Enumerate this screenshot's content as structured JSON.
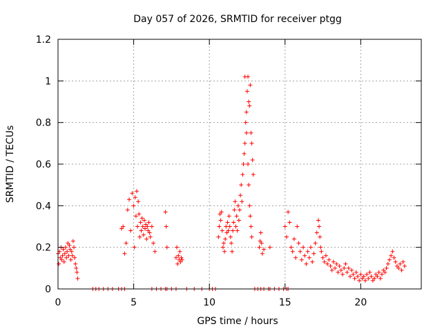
{
  "chart_data": {
    "type": "scatter",
    "title": "Day 057 of 2026, SRMTID for receiver ptgg",
    "xlabel": "GPS time / hours",
    "ylabel": "SRMTID / TECUs",
    "xlim": [
      0,
      24
    ],
    "ylim": [
      0,
      1.2
    ],
    "xticks": [
      0,
      5,
      10,
      15,
      20
    ],
    "xtick_labels": [
      "0",
      "5",
      "10",
      "15",
      "20"
    ],
    "yticks": [
      0,
      0.2,
      0.4,
      0.6,
      0.8,
      1,
      1.2
    ],
    "ytick_labels": [
      "0",
      "0.2",
      "0.4",
      "0.6",
      "0.8",
      "1",
      "1.2"
    ],
    "grid": true,
    "marker": "plus",
    "color": "#ff0000",
    "series": [
      {
        "name": "SRMTID",
        "x": [
          0.0,
          0.05,
          0.1,
          0.15,
          0.2,
          0.25,
          0.3,
          0.35,
          0.4,
          0.45,
          0.5,
          0.55,
          0.6,
          0.65,
          0.7,
          0.75,
          0.8,
          0.85,
          0.9,
          0.95,
          1.0,
          1.05,
          1.1,
          1.15,
          1.2,
          1.25,
          1.3,
          2.3,
          2.5,
          2.7,
          3.0,
          3.3,
          3.6,
          4.0,
          4.2,
          4.4,
          4.2,
          4.3,
          4.4,
          4.5,
          4.6,
          4.7,
          4.8,
          4.9,
          5.0,
          5.05,
          5.1,
          5.15,
          5.2,
          5.25,
          5.3,
          5.35,
          5.4,
          5.45,
          5.5,
          5.55,
          5.6,
          5.65,
          5.7,
          5.75,
          5.8,
          5.85,
          5.9,
          5.95,
          6.0,
          6.05,
          6.1,
          6.2,
          6.3,
          6.4,
          6.2,
          6.5,
          6.8,
          7.1,
          7.2,
          7.5,
          7.8,
          7.1,
          7.15,
          7.2,
          7.8,
          7.85,
          7.9,
          7.95,
          8.0,
          8.05,
          8.1,
          8.15,
          8.2,
          8.5,
          9.0,
          9.5,
          10.0,
          10.2,
          10.4,
          10.6,
          10.65,
          10.7,
          10.75,
          10.8,
          10.85,
          10.9,
          10.95,
          11.0,
          11.05,
          11.1,
          11.15,
          11.2,
          11.25,
          11.3,
          11.35,
          11.4,
          11.45,
          11.5,
          11.55,
          11.6,
          11.65,
          11.7,
          11.75,
          11.8,
          11.85,
          11.9,
          11.95,
          12.0,
          12.05,
          12.1,
          12.15,
          12.2,
          12.25,
          12.3,
          12.35,
          12.4,
          12.45,
          12.5,
          12.55,
          12.6,
          12.65,
          12.7,
          12.75,
          12.8,
          12.85,
          12.9,
          12.35,
          12.45,
          12.55,
          12.6,
          12.65,
          12.7,
          12.75,
          12.8,
          13.0,
          13.2,
          13.4,
          13.6,
          14.0,
          14.3,
          14.6,
          14.9,
          15.1,
          15.2,
          13.3,
          13.35,
          13.4,
          13.45,
          13.5,
          13.6,
          13.9,
          14.0,
          15.0,
          15.1,
          15.2,
          15.3,
          15.4,
          15.5,
          15.6,
          15.7,
          15.8,
          15.9,
          16.0,
          16.1,
          16.2,
          16.3,
          16.4,
          16.5,
          16.6,
          16.7,
          16.8,
          16.9,
          17.0,
          17.1,
          17.2,
          17.25,
          17.3,
          17.35,
          17.4,
          17.5,
          17.6,
          17.7,
          17.8,
          17.9,
          18.0,
          18.1,
          18.2,
          18.3,
          18.4,
          18.5,
          18.6,
          18.7,
          18.8,
          18.9,
          19.0,
          19.1,
          19.2,
          19.3,
          19.4,
          19.5,
          19.6,
          19.7,
          19.8,
          19.9,
          20.0,
          20.1,
          20.2,
          20.3,
          20.4,
          20.5,
          20.6,
          20.7,
          20.8,
          20.9,
          21.0,
          21.1,
          21.2,
          21.3,
          21.4,
          21.5,
          21.6,
          21.7,
          21.8,
          21.9,
          22.0,
          22.1,
          22.2,
          22.3,
          22.4,
          22.5,
          22.6,
          22.7,
          22.8,
          22.9
        ],
        "y": [
          0.17,
          0.12,
          0.18,
          0.15,
          0.2,
          0.14,
          0.16,
          0.19,
          0.13,
          0.17,
          0.2,
          0.15,
          0.18,
          0.22,
          0.16,
          0.21,
          0.19,
          0.14,
          0.18,
          0.16,
          0.23,
          0.2,
          0.15,
          0.12,
          0.1,
          0.08,
          0.05,
          0.0,
          0.0,
          0.0,
          0.0,
          0.0,
          0.0,
          0.0,
          0.0,
          0.0,
          0.29,
          0.3,
          0.17,
          0.22,
          0.38,
          0.43,
          0.28,
          0.46,
          0.4,
          0.2,
          0.44,
          0.35,
          0.47,
          0.3,
          0.42,
          0.36,
          0.25,
          0.32,
          0.28,
          0.34,
          0.3,
          0.26,
          0.33,
          0.29,
          0.31,
          0.24,
          0.3,
          0.28,
          0.32,
          0.27,
          0.25,
          0.3,
          0.22,
          0.18,
          0.0,
          0.0,
          0.0,
          0.0,
          0.0,
          0.0,
          0.0,
          0.37,
          0.3,
          0.2,
          0.15,
          0.2,
          0.12,
          0.16,
          0.14,
          0.18,
          0.13,
          0.15,
          0.14,
          0.0,
          0.0,
          0.0,
          0.0,
          0.0,
          0.0,
          0.25,
          0.3,
          0.36,
          0.33,
          0.37,
          0.28,
          0.2,
          0.22,
          0.18,
          0.24,
          0.3,
          0.27,
          0.32,
          0.28,
          0.35,
          0.3,
          0.25,
          0.22,
          0.18,
          0.28,
          0.32,
          0.38,
          0.42,
          0.3,
          0.35,
          0.28,
          0.4,
          0.33,
          0.38,
          0.45,
          0.5,
          0.42,
          0.55,
          0.6,
          0.65,
          0.7,
          0.8,
          0.85,
          0.95,
          1.02,
          0.9,
          0.88,
          0.98,
          0.75,
          0.7,
          0.62,
          0.55,
          1.02,
          0.75,
          0.6,
          0.5,
          0.4,
          0.35,
          0.3,
          0.25,
          0.0,
          0.0,
          0.0,
          0.0,
          0.0,
          0.0,
          0.0,
          0.0,
          0.0,
          0.0,
          0.2,
          0.23,
          0.27,
          0.22,
          0.17,
          0.19,
          0.0,
          0.2,
          0.3,
          0.25,
          0.37,
          0.32,
          0.2,
          0.18,
          0.24,
          0.15,
          0.3,
          0.22,
          0.18,
          0.14,
          0.2,
          0.16,
          0.12,
          0.18,
          0.15,
          0.2,
          0.13,
          0.17,
          0.22,
          0.27,
          0.33,
          0.3,
          0.25,
          0.2,
          0.18,
          0.15,
          0.13,
          0.16,
          0.12,
          0.14,
          0.11,
          0.09,
          0.13,
          0.1,
          0.12,
          0.08,
          0.11,
          0.09,
          0.07,
          0.1,
          0.12,
          0.08,
          0.1,
          0.06,
          0.09,
          0.07,
          0.05,
          0.08,
          0.06,
          0.04,
          0.07,
          0.05,
          0.06,
          0.04,
          0.07,
          0.05,
          0.08,
          0.06,
          0.04,
          0.05,
          0.07,
          0.06,
          0.08,
          0.05,
          0.07,
          0.09,
          0.08,
          0.1,
          0.12,
          0.14,
          0.16,
          0.18,
          0.15,
          0.13,
          0.11,
          0.1,
          0.12,
          0.09,
          0.13,
          0.11
        ]
      }
    ]
  }
}
